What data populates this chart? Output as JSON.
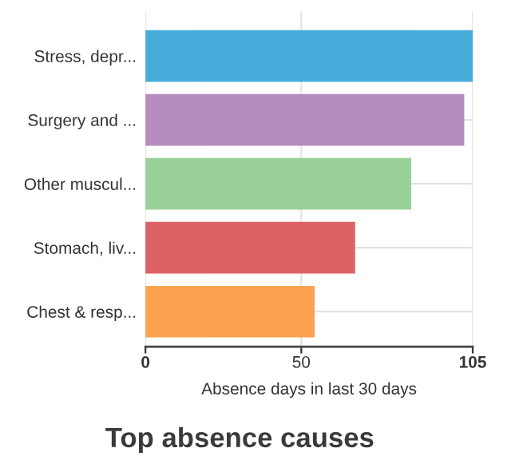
{
  "chart_data": {
    "type": "bar",
    "orientation": "horizontal",
    "title": "Top absence causes",
    "xlabel": "Absence days in last 30 days",
    "categories": [
      "Stress, depr...",
      "Surgery and ...",
      "Other muscul...",
      "Stomach, liv...",
      "Chest & resp..."
    ],
    "values": [
      105,
      102,
      85,
      67,
      54
    ],
    "colors": [
      "#3fa9d9",
      "#b286bd",
      "#94cf94",
      "#dc5a5c",
      "#fc9e48"
    ],
    "xlim": [
      0,
      105
    ],
    "xticks": [
      0,
      50,
      105
    ],
    "grid": true
  }
}
